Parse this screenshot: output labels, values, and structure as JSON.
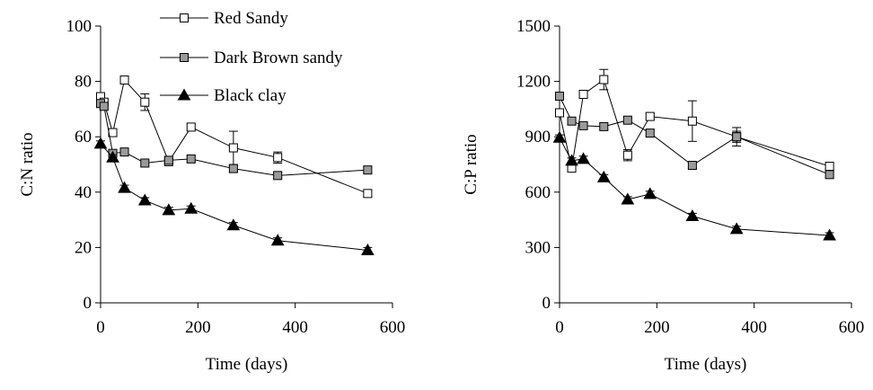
{
  "chart_data": [
    {
      "type": "line",
      "xlabel": "Time (days)",
      "ylabel": "C:N ratio",
      "xlim": [
        0,
        600
      ],
      "ylim": [
        0,
        100
      ],
      "xticks": [
        0,
        200,
        400,
        600
      ],
      "yticks": [
        0,
        20,
        40,
        60,
        80,
        100
      ],
      "grid": false,
      "legend": "top-center",
      "series": [
        {
          "name": "Red Sandy",
          "marker": "open-square",
          "x": [
            0,
            7,
            25,
            49,
            91,
            140,
            186,
            273,
            364,
            549
          ],
          "y": [
            74.5,
            72.5,
            61.5,
            80.5,
            72.5,
            51,
            63.5,
            56,
            52.5,
            39.5
          ],
          "err": [
            1,
            1,
            1,
            1,
            3,
            1,
            1,
            6,
            2,
            1
          ]
        },
        {
          "name": "Dark Brown sandy",
          "marker": "gray-square",
          "x": [
            0,
            7,
            25,
            49,
            91,
            140,
            186,
            273,
            364,
            549
          ],
          "y": [
            72,
            71,
            54,
            54.5,
            50.5,
            51.5,
            52,
            48.5,
            46,
            48
          ],
          "err": [
            1,
            1,
            1,
            1,
            1,
            1,
            1,
            1,
            1,
            1
          ]
        },
        {
          "name": "Black clay",
          "marker": "filled-triangle",
          "x": [
            0,
            25,
            49,
            91,
            140,
            186,
            273,
            364,
            549
          ],
          "y": [
            57.5,
            52.5,
            41.5,
            37,
            33.5,
            34,
            28,
            22.5,
            19
          ],
          "err": [
            1,
            1,
            1,
            1,
            1,
            1,
            1,
            1,
            1
          ]
        }
      ]
    },
    {
      "type": "line",
      "xlabel": "Time (days)",
      "ylabel": "C:P ratio",
      "xlim": [
        0,
        600
      ],
      "ylim": [
        0,
        1500
      ],
      "xticks": [
        0,
        200,
        400,
        600
      ],
      "yticks": [
        0,
        300,
        600,
        900,
        1200,
        1500
      ],
      "grid": false,
      "series": [
        {
          "name": "Red Sandy",
          "marker": "open-square",
          "x": [
            0,
            25,
            49,
            91,
            140,
            186,
            273,
            364,
            555
          ],
          "y": [
            1030,
            730,
            1130,
            1210,
            800,
            1010,
            985,
            900,
            740
          ],
          "err": [
            15,
            15,
            15,
            55,
            30,
            15,
            110,
            50,
            15
          ]
        },
        {
          "name": "Dark Brown sandy",
          "marker": "gray-square",
          "x": [
            0,
            25,
            49,
            91,
            140,
            186,
            273,
            364,
            555
          ],
          "y": [
            1120,
            985,
            960,
            955,
            990,
            920,
            745,
            900,
            695
          ],
          "err": [
            20,
            15,
            15,
            15,
            15,
            15,
            15,
            30,
            15
          ]
        },
        {
          "name": "Black clay",
          "marker": "filled-triangle",
          "x": [
            0,
            25,
            49,
            91,
            140,
            186,
            273,
            364,
            555
          ],
          "y": [
            895,
            770,
            780,
            680,
            560,
            590,
            470,
            400,
            365
          ],
          "err": [
            15,
            15,
            15,
            15,
            15,
            15,
            15,
            15,
            15
          ]
        }
      ]
    }
  ]
}
